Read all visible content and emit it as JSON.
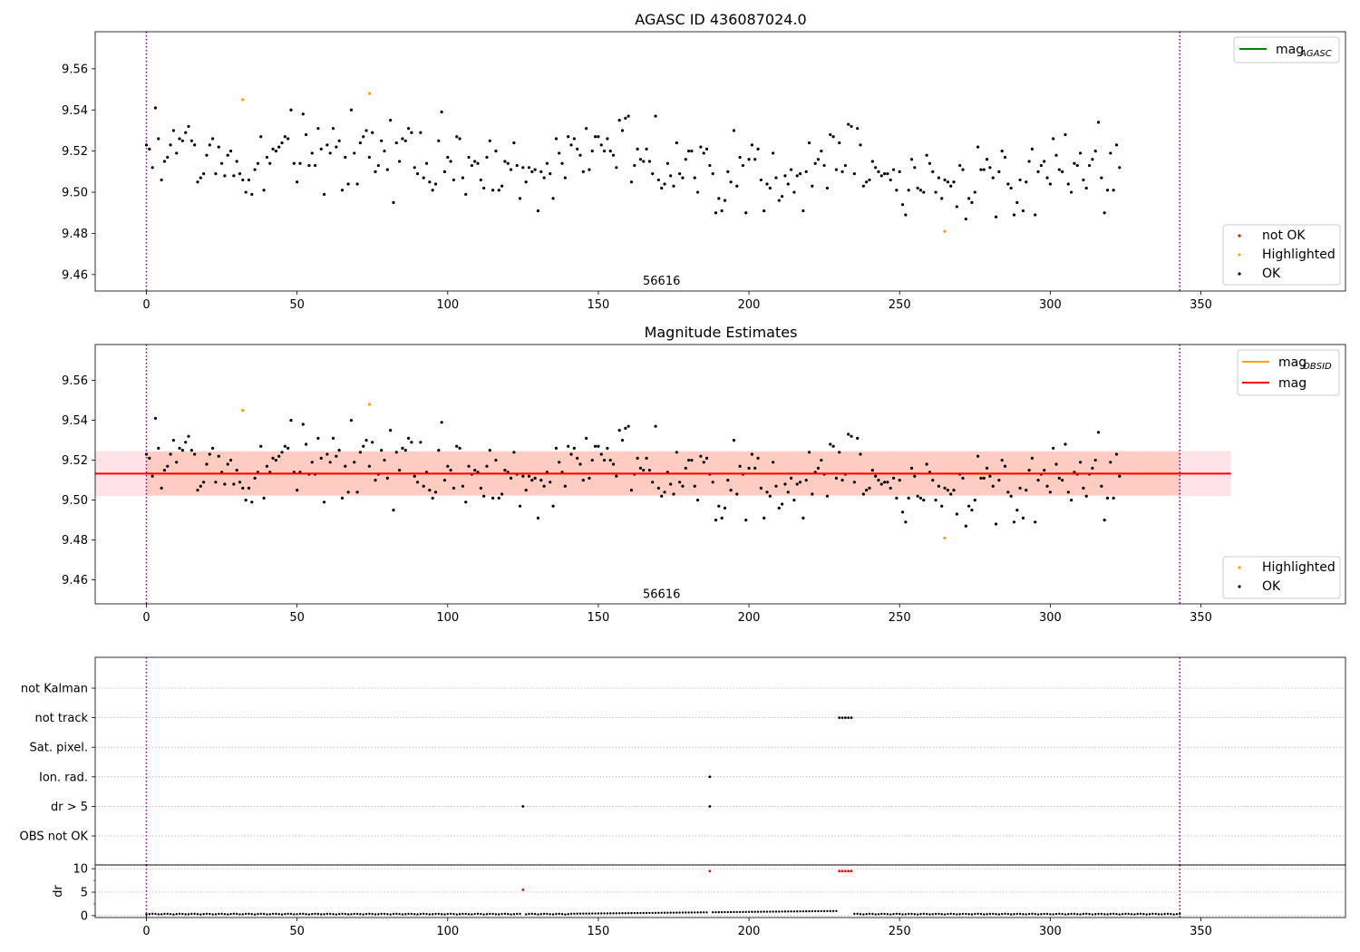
{
  "chart_data": [
    {
      "type": "scatter",
      "title": "AGASC ID 436087024.0",
      "xlim": [
        -17,
        398
      ],
      "ylim": [
        9.452,
        9.578
      ],
      "xticks": [
        0,
        50,
        100,
        150,
        200,
        250,
        300,
        350
      ],
      "yticks": [
        9.46,
        9.48,
        9.5,
        9.52,
        9.54,
        9.56
      ],
      "vlines": [
        0,
        343
      ],
      "annotation": {
        "text": "56616",
        "x": 171,
        "y": 9.455
      },
      "legend_upper": [
        {
          "label": "mag",
          "sub": "AGASC",
          "color": "#008000"
        }
      ],
      "legend_lower": [
        {
          "label": "not OK",
          "color": "#ff0000"
        },
        {
          "label": "Highlighted",
          "color": "#ffa500"
        },
        {
          "label": "OK",
          "color": "#000000"
        }
      ],
      "highlighted_points": [
        [
          32,
          9.545
        ],
        [
          74,
          9.548
        ],
        [
          265,
          9.481
        ]
      ],
      "ok_y": [
        9.523,
        9.521,
        9.512,
        9.541,
        9.526,
        9.506,
        9.515,
        9.517,
        9.523,
        9.53,
        9.519,
        9.526,
        9.525,
        9.529,
        9.532,
        9.525,
        9.523,
        9.505,
        9.507,
        9.509,
        9.518,
        9.523,
        9.526,
        9.509,
        9.522,
        9.514,
        9.508,
        9.518,
        9.52,
        9.508,
        9.515,
        9.509,
        9.506,
        9.5,
        9.506,
        9.499,
        9.511,
        9.514,
        9.527,
        9.501,
        9.517,
        9.514,
        9.521,
        9.52,
        9.522,
        9.524,
        9.527,
        9.526,
        9.54,
        9.514,
        9.505,
        9.514,
        9.538,
        9.528,
        9.513,
        9.519,
        9.513,
        9.531,
        9.521,
        9.499,
        9.523,
        9.519,
        9.531,
        9.522,
        9.525,
        9.501,
        9.517,
        9.504,
        9.54,
        9.519,
        9.504,
        9.524,
        9.527,
        9.53,
        9.517,
        9.529,
        9.51,
        9.513,
        9.525,
        9.52,
        9.511,
        9.535,
        9.495,
        9.524,
        9.515,
        9.526,
        9.525,
        9.531,
        9.529,
        9.512,
        9.509,
        9.529,
        9.507,
        9.514,
        9.505,
        9.501,
        9.504,
        9.525,
        9.539,
        9.51,
        9.517,
        9.515,
        9.506,
        9.527,
        9.526,
        9.507,
        9.499,
        9.517,
        9.513,
        9.515,
        9.514,
        9.506,
        9.502,
        9.517,
        9.525,
        9.501,
        9.52,
        9.501,
        9.503,
        9.515,
        9.514,
        9.511,
        9.524,
        9.513,
        9.497,
        9.512,
        9.505,
        9.512,
        9.51,
        9.511,
        9.491,
        9.51,
        9.507,
        9.514,
        9.509,
        9.497,
        9.526,
        9.519,
        9.514,
        9.507,
        9.527,
        9.523,
        9.526,
        9.521,
        9.518,
        9.51,
        9.531,
        9.511,
        9.52,
        9.527,
        9.527,
        9.523,
        9.52,
        9.526,
        9.52,
        9.518,
        9.512,
        9.535,
        9.53,
        9.536,
        9.537,
        9.505,
        9.513,
        9.521,
        9.516,
        9.515,
        9.521,
        9.515,
        9.509,
        9.537,
        9.506,
        9.502,
        9.504,
        9.514,
        9.508,
        9.503,
        9.524,
        9.509,
        9.507,
        9.516,
        9.52,
        9.52,
        9.507,
        9.5,
        9.522,
        9.519,
        9.521,
        9.513,
        9.509,
        9.49,
        9.497,
        9.491,
        9.496,
        9.51,
        9.505,
        9.53,
        9.503,
        9.517,
        9.513,
        9.49,
        9.516,
        9.523,
        9.516,
        9.521,
        9.506,
        9.491,
        9.504,
        9.502,
        9.519,
        9.507,
        9.496,
        9.498,
        9.508,
        9.504,
        9.511,
        9.5,
        9.508,
        9.509,
        9.491,
        9.51,
        9.524,
        9.503,
        9.514,
        9.516,
        9.52,
        9.513,
        9.502,
        9.528,
        9.527,
        9.511,
        9.524,
        9.51,
        9.513,
        9.533,
        9.532,
        9.509,
        9.531,
        9.523,
        9.503,
        9.505,
        9.506,
        9.515,
        9.512,
        9.51,
        9.508,
        9.509,
        9.509,
        9.506,
        9.511,
        9.501,
        9.51,
        9.494,
        9.489,
        9.501,
        9.516,
        9.512,
        9.502,
        9.501,
        9.5,
        9.518,
        9.514,
        9.51,
        9.5,
        9.507,
        9.497,
        9.506,
        9.505,
        9.503,
        9.505,
        9.493,
        9.513,
        9.511,
        9.487,
        9.497,
        9.495,
        9.5,
        9.522,
        9.511,
        9.511,
        9.516,
        9.512,
        9.507,
        9.488,
        9.51,
        9.52,
        9.517,
        9.504,
        9.502,
        9.489,
        9.495,
        9.506,
        9.491,
        9.505,
        9.515,
        9.521,
        9.489,
        9.51,
        9.513,
        9.515,
        9.507,
        9.504,
        9.526,
        9.518,
        9.511,
        9.51,
        9.528,
        9.504,
        9.5,
        9.514,
        9.513,
        9.519,
        9.506,
        9.502,
        9.513,
        9.516,
        9.52,
        9.534,
        9.507,
        9.49,
        9.501,
        9.519,
        9.501,
        9.523,
        9.512
      ]
    },
    {
      "type": "scatter",
      "title": "Magnitude Estimates",
      "xlim": [
        -17,
        398
      ],
      "ylim": [
        9.448,
        9.578
      ],
      "xticks": [
        0,
        50,
        100,
        150,
        200,
        250,
        300,
        350
      ],
      "yticks": [
        9.46,
        9.48,
        9.5,
        9.52,
        9.54,
        9.56
      ],
      "vlines": [
        0,
        343
      ],
      "annotation": {
        "text": "56616",
        "x": 171,
        "y": 9.451
      },
      "mean_mag": 9.5133,
      "band_obsid": [
        9.5025,
        9.5243
      ],
      "band_mag": [
        9.502,
        9.5246
      ],
      "band_xrange": [
        -17,
        360
      ],
      "legend_upper": [
        {
          "label": "mag",
          "sub": "OBSID",
          "color": "#ffa500"
        },
        {
          "label": "mag",
          "sub": "",
          "color": "#ff0000"
        }
      ],
      "legend_lower": [
        {
          "label": "Highlighted",
          "color": "#ffa500"
        },
        {
          "label": "OK",
          "color": "#000000"
        }
      ]
    },
    {
      "type": "scatter",
      "ylabels": [
        "not Kalman",
        "not track",
        "Sat. pixel.",
        "Ion. rad.",
        "dr > 5",
        "OBS not OK"
      ],
      "xlim": [
        -17,
        398
      ],
      "vlines": [
        0,
        343
      ],
      "flag_points": [
        {
          "row": "not track",
          "x": [
            230,
            231,
            232,
            233,
            234
          ]
        },
        {
          "row": "Ion. rad.",
          "x": [
            187
          ]
        },
        {
          "row": "dr > 5",
          "x": [
            125,
            187
          ]
        }
      ]
    },
    {
      "type": "scatter",
      "ylabel": "dr",
      "xlim": [
        -17,
        398
      ],
      "ylim": [
        -0.4,
        10.8
      ],
      "xticks": [
        0,
        50,
        100,
        150,
        200,
        250,
        300,
        350
      ],
      "yticks": [
        0,
        5,
        10
      ],
      "vlines": [
        0,
        343
      ],
      "red_points": [
        [
          125,
          5.5
        ],
        [
          187,
          9.5
        ],
        [
          230,
          9.5
        ],
        [
          231,
          9.5
        ],
        [
          232,
          9.5
        ],
        [
          233,
          9.5
        ],
        [
          234,
          9.5
        ]
      ]
    }
  ]
}
